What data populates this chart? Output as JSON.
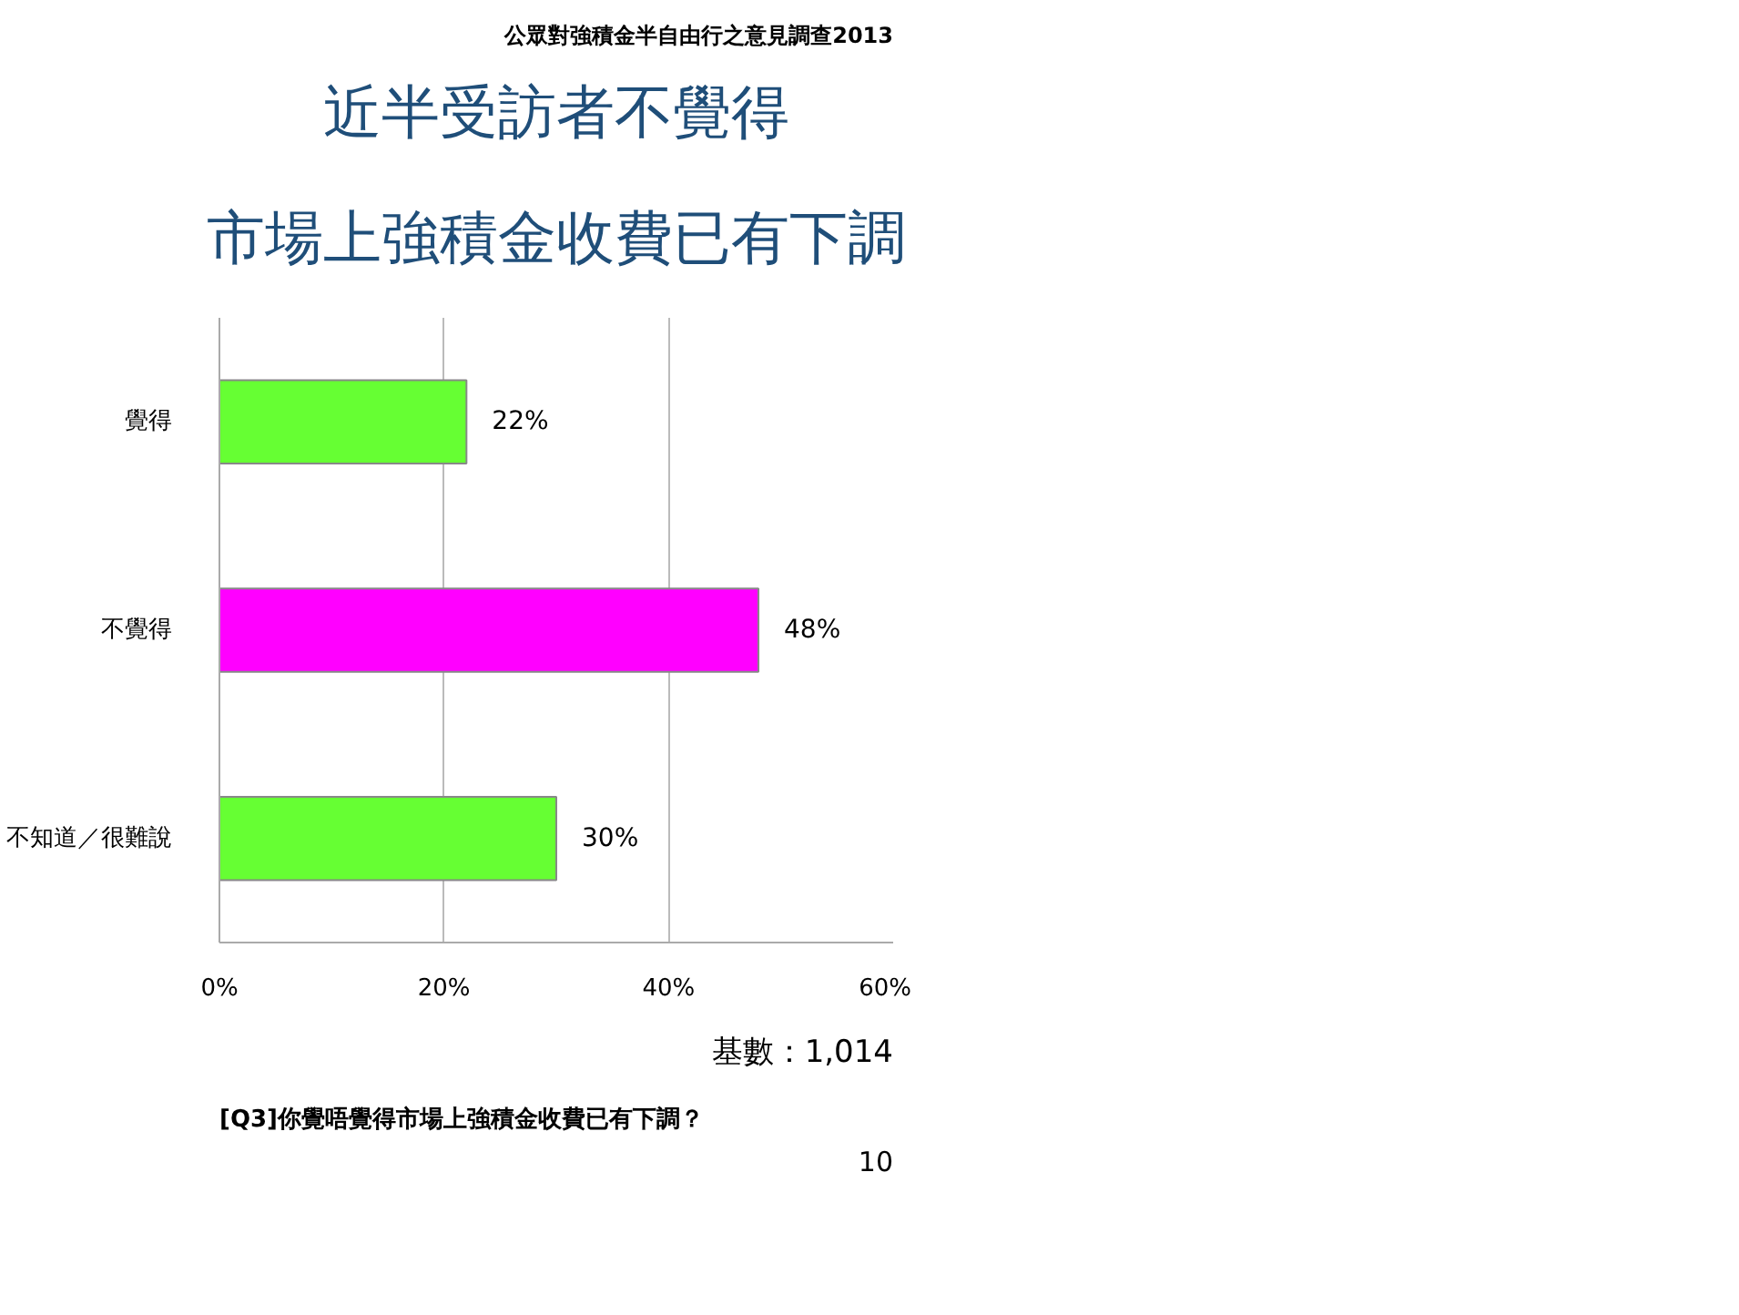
{
  "chart_data": {
    "type": "bar",
    "orientation": "horizontal",
    "title": "近半受訪者不覺得",
    "subtitle": "市場上強積金收費已有下調",
    "categories": [
      "覺得",
      "不覺得",
      "不知道／很難說"
    ],
    "values": [
      22,
      48,
      30
    ],
    "colors": [
      "#66ff33",
      "#ff00ff",
      "#66ff33"
    ],
    "value_labels": [
      "22%",
      "48%",
      "30%"
    ],
    "xlim": [
      0,
      60
    ],
    "xticks": [
      {
        "value": 0,
        "label": "0%"
      },
      {
        "value": 20,
        "label": "20%"
      },
      {
        "value": 40,
        "label": "40%"
      },
      {
        "value": 60,
        "label": "60%"
      }
    ],
    "grid": "x",
    "annotations": [
      "公眾對強積金半自由行之意見調查2013",
      "基數：1,014",
      "[Q3]你覺唔覺得市場上強積金收費已有下調？",
      "10"
    ]
  }
}
